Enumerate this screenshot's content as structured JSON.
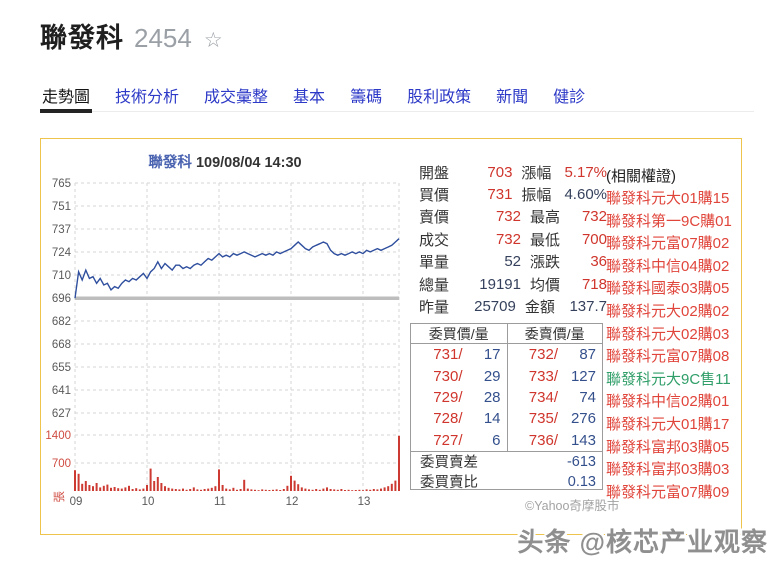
{
  "header": {
    "name": "聯發科",
    "code": "2454",
    "star_icon": "☆"
  },
  "tabs": [
    {
      "key": "trend-chart",
      "label": "走勢圖",
      "active": true
    },
    {
      "key": "technical-analysis",
      "label": "技術分析",
      "active": false
    },
    {
      "key": "trade-summary",
      "label": "成交彙整",
      "active": false
    },
    {
      "key": "basic",
      "label": "基本",
      "active": false
    },
    {
      "key": "chips",
      "label": "籌碼",
      "active": false
    },
    {
      "key": "dividend-policy",
      "label": "股利政策",
      "active": false
    },
    {
      "key": "news",
      "label": "新聞",
      "active": false
    },
    {
      "key": "health-check",
      "label": "健診",
      "active": false
    }
  ],
  "chart_data": {
    "type": "line",
    "title_stock": "聯發科",
    "title_time": "109/08/04 14:30",
    "session": [
      "09:00",
      "13:30"
    ],
    "interval_minutes": 3,
    "x_ticks": [
      "09",
      "10",
      "11",
      "12",
      "13"
    ],
    "price_ticks": [
      765,
      751,
      737,
      724,
      710,
      696,
      682,
      668,
      655,
      641,
      627
    ],
    "price_axis_range": [
      626.4,
      765.6
    ],
    "prev_close": 696,
    "volume_ticks": [
      1400,
      700
    ],
    "volume_axis_max": 1400,
    "volume_unit": "張",
    "copyright": "©Yahoo奇摩股市",
    "line_color": "#2f4f9e",
    "volume_color": "#cc3a31",
    "price": [
      696,
      712,
      707,
      713,
      708,
      709,
      705,
      708,
      704,
      705,
      701,
      703,
      702,
      705,
      707,
      706,
      708,
      707,
      709,
      711,
      708,
      712,
      714,
      718,
      714,
      717,
      715,
      713,
      716,
      716,
      714,
      715,
      714,
      716,
      717,
      716,
      718,
      720,
      719,
      721,
      723,
      721,
      722,
      721,
      723,
      722,
      723,
      724,
      723,
      722,
      721,
      722,
      723,
      722,
      723,
      722,
      724,
      723,
      724,
      725,
      726,
      728,
      730,
      728,
      726,
      725,
      727,
      728,
      729,
      730,
      729,
      725,
      723,
      722,
      723,
      722,
      723,
      724,
      723,
      724,
      723,
      725,
      724,
      725,
      726,
      725,
      726,
      727,
      728,
      730,
      732
    ],
    "volume": [
      520,
      430,
      180,
      250,
      150,
      120,
      200,
      90,
      130,
      160,
      80,
      100,
      70,
      60,
      90,
      130,
      50,
      70,
      40,
      60,
      150,
      560,
      250,
      350,
      200,
      120,
      80,
      60,
      50,
      40,
      60,
      30,
      50,
      90,
      40,
      30,
      50,
      60,
      80,
      120,
      540,
      150,
      60,
      40,
      80,
      30,
      50,
      280,
      60,
      40,
      30,
      20,
      40,
      30,
      25,
      30,
      40,
      25,
      50,
      130,
      380,
      260,
      170,
      90,
      60,
      40,
      30,
      50,
      30,
      60,
      90,
      50,
      40,
      30,
      50,
      25,
      30,
      20,
      25,
      30,
      20,
      40,
      30,
      50,
      40,
      60,
      90,
      120,
      180,
      260,
      1380
    ]
  },
  "quote": {
    "rows": [
      {
        "l1": "開盤",
        "v1": "703",
        "c1": "up",
        "l2": "漲幅",
        "v2": "5.17%",
        "c2": "up"
      },
      {
        "l1": "買價",
        "v1": "731",
        "c1": "up",
        "l2": "振幅",
        "v2": "4.60%",
        "c2": "plain"
      },
      {
        "l1": "賣價",
        "v1": "732",
        "c1": "up",
        "l2": "最高",
        "v2": "732",
        "c2": "up"
      },
      {
        "l1": "成交",
        "v1": "732",
        "c1": "up",
        "l2": "最低",
        "v2": "700",
        "c2": "up"
      },
      {
        "l1": "單量",
        "v1": "52",
        "c1": "plain",
        "l2": "漲跌",
        "v2": "36",
        "c2": "up"
      },
      {
        "l1": "總量",
        "v1": "19191",
        "c1": "plain",
        "l2": "均價",
        "v2": "718",
        "c2": "up"
      },
      {
        "l1": "昨量",
        "v1": "25709",
        "c1": "plain",
        "l2": "金額",
        "v2": "137.7",
        "c2": "plain"
      }
    ]
  },
  "bidask": {
    "bid_header": "委買價/量",
    "ask_header": "委賣價/量",
    "rows": [
      {
        "bid_price": "731/",
        "bid_qty": "17",
        "ask_price": "732/",
        "ask_qty": "87"
      },
      {
        "bid_price": "730/",
        "bid_qty": "29",
        "ask_price": "733/",
        "ask_qty": "127"
      },
      {
        "bid_price": "729/",
        "bid_qty": "28",
        "ask_price": "734/",
        "ask_qty": "74"
      },
      {
        "bid_price": "728/",
        "bid_qty": "14",
        "ask_price": "735/",
        "ask_qty": "276"
      },
      {
        "bid_price": "727/",
        "bid_qty": "6",
        "ask_price": "736/",
        "ask_qty": "143"
      }
    ],
    "footer": [
      {
        "label": "委買賣差",
        "value": "-613"
      },
      {
        "label": "委買賣比",
        "value": "0.13"
      }
    ]
  },
  "warrants": {
    "header": "(相關權證)",
    "items": [
      {
        "label": "聯發科元大01購15",
        "type": "call"
      },
      {
        "label": "聯發科第一9C購01",
        "type": "call"
      },
      {
        "label": "聯發科元富07購02",
        "type": "call"
      },
      {
        "label": "聯發科中信04購02",
        "type": "call"
      },
      {
        "label": "聯發科國泰03購05",
        "type": "call"
      },
      {
        "label": "聯發科元大02購02",
        "type": "call"
      },
      {
        "label": "聯發科元大02購03",
        "type": "call"
      },
      {
        "label": "聯發科元富07購08",
        "type": "call"
      },
      {
        "label": "聯發科元大9C售11",
        "type": "put"
      },
      {
        "label": "聯發科中信02購01",
        "type": "call"
      },
      {
        "label": "聯發科元大01購17",
        "type": "call"
      },
      {
        "label": "聯發科富邦03購05",
        "type": "call"
      },
      {
        "label": "聯發科富邦03購03",
        "type": "call"
      },
      {
        "label": "聯發科元富07購09",
        "type": "call"
      }
    ]
  },
  "watermark": "头条 @核芯产业观察"
}
